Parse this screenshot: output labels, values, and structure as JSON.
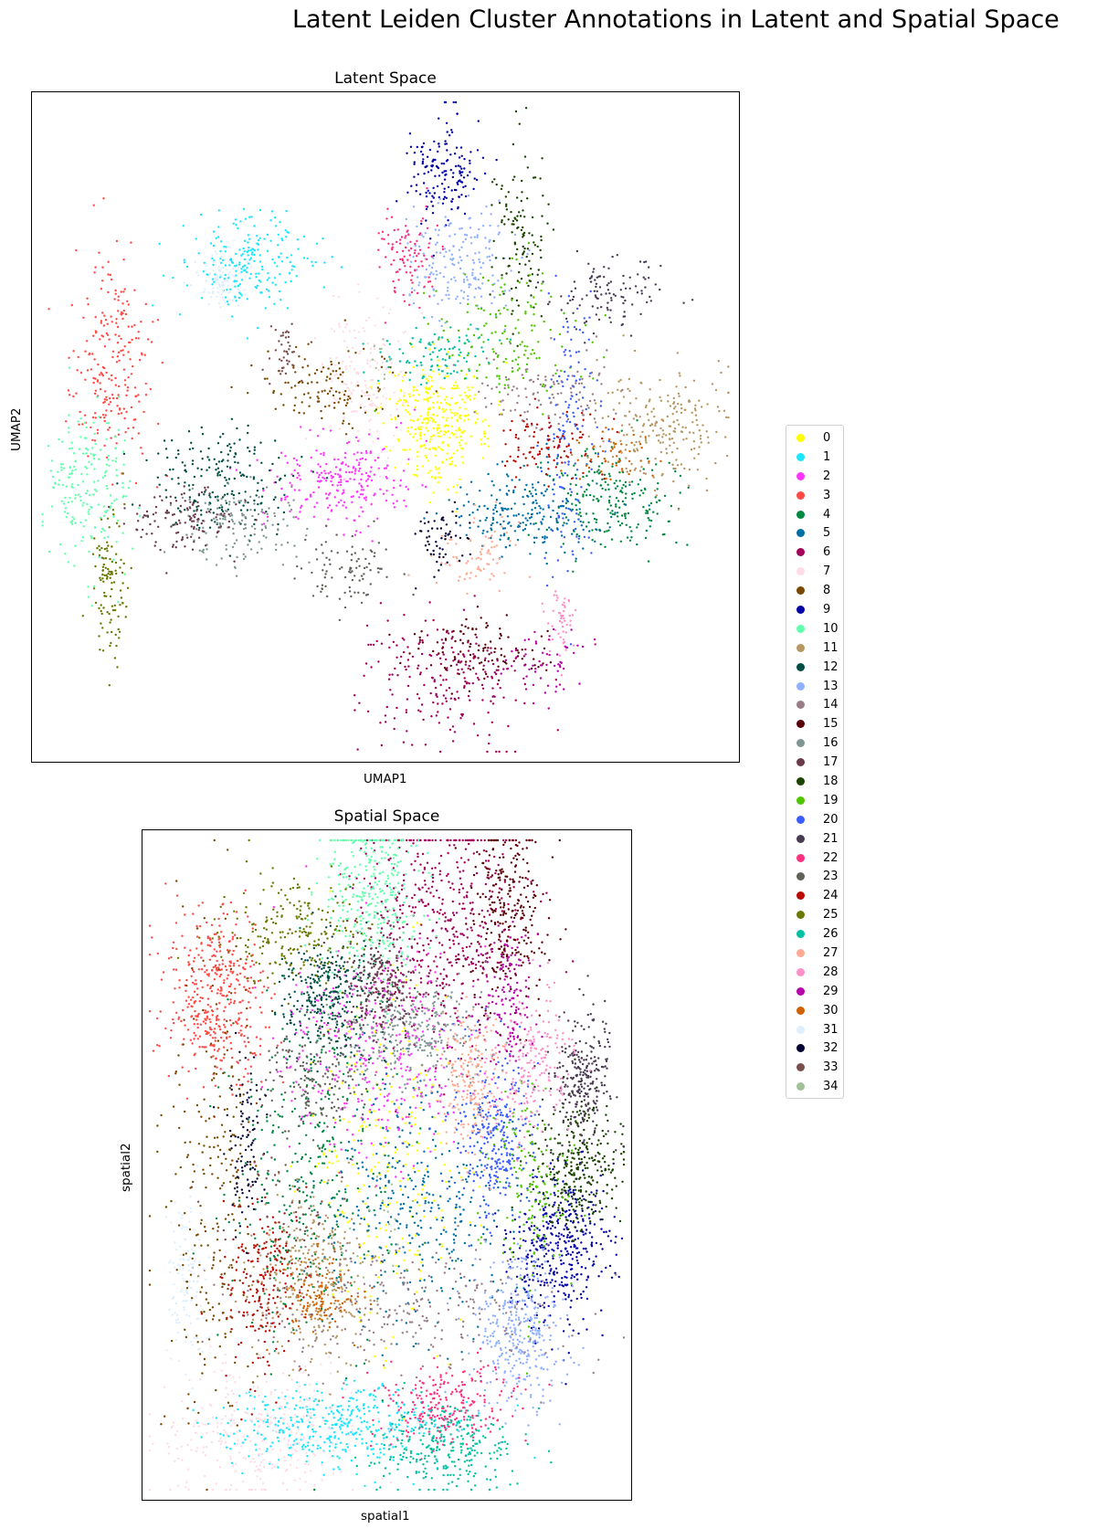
{
  "figure": {
    "title": "Latent Leiden Cluster Annotations in Latent and Spatial Space"
  },
  "chart_data": [
    {
      "type": "scatter",
      "title": "Latent Space",
      "xlabel": "UMAP1",
      "ylabel": "UMAP2",
      "grid": false,
      "xticks": [],
      "yticks": [],
      "legend_position": "right",
      "note_values": "x/y in normalized axis units (0-1); axes have no ticks",
      "clusters": [
        {
          "id": "0",
          "center": [
            0.57,
            0.49
          ],
          "spread": [
            0.035,
            0.045
          ],
          "n": 340
        },
        {
          "id": "1",
          "center": [
            0.31,
            0.25
          ],
          "spread": [
            0.045,
            0.04
          ],
          "n": 220
        },
        {
          "id": "2",
          "center": [
            0.44,
            0.58
          ],
          "spread": [
            0.05,
            0.035
          ],
          "n": 240
        },
        {
          "id": "3",
          "center": [
            0.11,
            0.41
          ],
          "spread": [
            0.03,
            0.09
          ],
          "n": 230
        },
        {
          "id": "4",
          "center": [
            0.82,
            0.61
          ],
          "spread": [
            0.05,
            0.04
          ],
          "n": 220
        },
        {
          "id": "5",
          "center": [
            0.7,
            0.63
          ],
          "spread": [
            0.05,
            0.03
          ],
          "n": 220
        },
        {
          "id": "6",
          "center": [
            0.58,
            0.88
          ],
          "spread": [
            0.06,
            0.05
          ],
          "n": 230
        },
        {
          "id": "7",
          "center": [
            0.47,
            0.42
          ],
          "spread": [
            0.03,
            0.06
          ],
          "n": 160
        },
        {
          "id": "8",
          "center": [
            0.41,
            0.44
          ],
          "spread": [
            0.05,
            0.03
          ],
          "n": 120
        },
        {
          "id": "9",
          "center": [
            0.58,
            0.12
          ],
          "spread": [
            0.025,
            0.04
          ],
          "n": 160
        },
        {
          "id": "10",
          "center": [
            0.08,
            0.59
          ],
          "spread": [
            0.03,
            0.06
          ],
          "n": 200
        },
        {
          "id": "11",
          "center": [
            0.89,
            0.5
          ],
          "spread": [
            0.05,
            0.04
          ],
          "n": 230
        },
        {
          "id": "12",
          "center": [
            0.27,
            0.58
          ],
          "spread": [
            0.05,
            0.04
          ],
          "n": 200
        },
        {
          "id": "13",
          "center": [
            0.61,
            0.25
          ],
          "spread": [
            0.04,
            0.04
          ],
          "n": 190
        },
        {
          "id": "14",
          "center": [
            0.72,
            0.45
          ],
          "spread": [
            0.05,
            0.03
          ],
          "n": 120
        },
        {
          "id": "15",
          "center": [
            0.64,
            0.83
          ],
          "spread": [
            0.05,
            0.025
          ],
          "n": 110
        },
        {
          "id": "16",
          "center": [
            0.29,
            0.65
          ],
          "spread": [
            0.04,
            0.03
          ],
          "n": 150
        },
        {
          "id": "17",
          "center": [
            0.21,
            0.64
          ],
          "spread": [
            0.04,
            0.025
          ],
          "n": 120
        },
        {
          "id": "18",
          "center": [
            0.69,
            0.21
          ],
          "spread": [
            0.02,
            0.06
          ],
          "n": 120
        },
        {
          "id": "19",
          "center": [
            0.68,
            0.36
          ],
          "spread": [
            0.06,
            0.05
          ],
          "n": 150
        },
        {
          "id": "20",
          "center": [
            0.76,
            0.5
          ],
          "spread": [
            0.02,
            0.1
          ],
          "n": 150
        },
        {
          "id": "21",
          "center": [
            0.81,
            0.3
          ],
          "spread": [
            0.04,
            0.025
          ],
          "n": 110
        },
        {
          "id": "22",
          "center": [
            0.53,
            0.24
          ],
          "spread": [
            0.02,
            0.04
          ],
          "n": 100
        },
        {
          "id": "23",
          "center": [
            0.45,
            0.71
          ],
          "spread": [
            0.035,
            0.03
          ],
          "n": 90
        },
        {
          "id": "24",
          "center": [
            0.73,
            0.53
          ],
          "spread": [
            0.035,
            0.025
          ],
          "n": 100
        },
        {
          "id": "25",
          "center": [
            0.11,
            0.74
          ],
          "spread": [
            0.012,
            0.06
          ],
          "n": 110
        },
        {
          "id": "26",
          "center": [
            0.57,
            0.39
          ],
          "spread": [
            0.04,
            0.02
          ],
          "n": 100
        },
        {
          "id": "27",
          "center": [
            0.63,
            0.69
          ],
          "spread": [
            0.03,
            0.03
          ],
          "n": 80
        },
        {
          "id": "28",
          "center": [
            0.75,
            0.79
          ],
          "spread": [
            0.01,
            0.03
          ],
          "n": 50
        },
        {
          "id": "29",
          "center": [
            0.73,
            0.85
          ],
          "spread": [
            0.03,
            0.03
          ],
          "n": 60
        },
        {
          "id": "30",
          "center": [
            0.82,
            0.55
          ],
          "spread": [
            0.025,
            0.02
          ],
          "n": 50
        },
        {
          "id": "31",
          "center": [
            0.27,
            0.28
          ],
          "spread": [
            0.02,
            0.02
          ],
          "n": 90
        },
        {
          "id": "32",
          "center": [
            0.58,
            0.67
          ],
          "spread": [
            0.02,
            0.03
          ],
          "n": 60
        },
        {
          "id": "33",
          "center": [
            0.36,
            0.38
          ],
          "spread": [
            0.01,
            0.025
          ],
          "n": 40
        },
        {
          "id": "34",
          "center": [
            0.5,
            0.4
          ],
          "spread": [
            0.02,
            0.02
          ],
          "n": 10
        }
      ]
    },
    {
      "type": "scatter",
      "title": "Spatial Space",
      "xlabel": "spatial1",
      "ylabel": "spatial2",
      "grid": false,
      "xticks": [],
      "yticks": [],
      "legend_position": "right",
      "note_values": "x/y in normalized axis units (0-1); axes have no ticks",
      "clusters": [
        {
          "id": "0",
          "center": [
            0.5,
            0.48
          ],
          "spread": [
            0.08,
            0.12
          ],
          "n": 260
        },
        {
          "id": "1",
          "center": [
            0.4,
            0.89
          ],
          "spread": [
            0.12,
            0.03
          ],
          "n": 420
        },
        {
          "id": "2",
          "center": [
            0.48,
            0.33
          ],
          "spread": [
            0.1,
            0.08
          ],
          "n": 380
        },
        {
          "id": "3",
          "center": [
            0.15,
            0.25
          ],
          "spread": [
            0.05,
            0.07
          ],
          "n": 420
        },
        {
          "id": "4",
          "center": [
            0.34,
            0.52
          ],
          "spread": [
            0.08,
            0.13
          ],
          "n": 360
        },
        {
          "id": "5",
          "center": [
            0.56,
            0.56
          ],
          "spread": [
            0.1,
            0.1
          ],
          "n": 360
        },
        {
          "id": "6",
          "center": [
            0.62,
            0.13
          ],
          "spread": [
            0.08,
            0.09
          ],
          "n": 480
        },
        {
          "id": "7",
          "center": [
            0.25,
            0.9
          ],
          "spread": [
            0.1,
            0.05
          ],
          "n": 300
        },
        {
          "id": "8",
          "center": [
            0.15,
            0.55
          ],
          "spread": [
            0.05,
            0.18
          ],
          "n": 260
        },
        {
          "id": "9",
          "center": [
            0.85,
            0.62
          ],
          "spread": [
            0.05,
            0.06
          ],
          "n": 420
        },
        {
          "id": "10",
          "center": [
            0.47,
            0.1
          ],
          "spread": [
            0.05,
            0.07
          ],
          "n": 340
        },
        {
          "id": "11",
          "center": [
            0.35,
            0.67
          ],
          "spread": [
            0.06,
            0.06
          ],
          "n": 300
        },
        {
          "id": "12",
          "center": [
            0.38,
            0.25
          ],
          "spread": [
            0.05,
            0.05
          ],
          "n": 320
        },
        {
          "id": "13",
          "center": [
            0.77,
            0.75
          ],
          "spread": [
            0.05,
            0.06
          ],
          "n": 340
        },
        {
          "id": "14",
          "center": [
            0.55,
            0.72
          ],
          "spread": [
            0.15,
            0.05
          ],
          "n": 280
        },
        {
          "id": "15",
          "center": [
            0.75,
            0.12
          ],
          "spread": [
            0.04,
            0.07
          ],
          "n": 280
        },
        {
          "id": "16",
          "center": [
            0.55,
            0.3
          ],
          "spread": [
            0.07,
            0.04
          ],
          "n": 300
        },
        {
          "id": "17",
          "center": [
            0.49,
            0.23
          ],
          "spread": [
            0.04,
            0.04
          ],
          "n": 240
        },
        {
          "id": "18",
          "center": [
            0.89,
            0.5
          ],
          "spread": [
            0.04,
            0.05
          ],
          "n": 300
        },
        {
          "id": "19",
          "center": [
            0.79,
            0.52
          ],
          "spread": [
            0.04,
            0.08
          ],
          "n": 160
        },
        {
          "id": "20",
          "center": [
            0.72,
            0.46
          ],
          "spread": [
            0.04,
            0.06
          ],
          "n": 300
        },
        {
          "id": "21",
          "center": [
            0.9,
            0.37
          ],
          "spread": [
            0.03,
            0.05
          ],
          "n": 260
        },
        {
          "id": "22",
          "center": [
            0.62,
            0.86
          ],
          "spread": [
            0.07,
            0.03
          ],
          "n": 240
        },
        {
          "id": "23",
          "center": [
            0.35,
            0.37
          ],
          "spread": [
            0.05,
            0.04
          ],
          "n": 160
        },
        {
          "id": "24",
          "center": [
            0.25,
            0.67
          ],
          "spread": [
            0.04,
            0.07
          ],
          "n": 200
        },
        {
          "id": "25",
          "center": [
            0.3,
            0.15
          ],
          "spread": [
            0.08,
            0.04
          ],
          "n": 220
        },
        {
          "id": "26",
          "center": [
            0.62,
            0.92
          ],
          "spread": [
            0.07,
            0.03
          ],
          "n": 280
        },
        {
          "id": "27",
          "center": [
            0.67,
            0.37
          ],
          "spread": [
            0.03,
            0.05
          ],
          "n": 200
        },
        {
          "id": "28",
          "center": [
            0.8,
            0.35
          ],
          "spread": [
            0.04,
            0.05
          ],
          "n": 200
        },
        {
          "id": "29",
          "center": [
            0.75,
            0.25
          ],
          "spread": [
            0.03,
            0.05
          ],
          "n": 140
        },
        {
          "id": "30",
          "center": [
            0.37,
            0.7
          ],
          "spread": [
            0.04,
            0.03
          ],
          "n": 120
        },
        {
          "id": "31",
          "center": [
            0.09,
            0.68
          ],
          "spread": [
            0.02,
            0.06
          ],
          "n": 120
        },
        {
          "id": "32",
          "center": [
            0.21,
            0.47
          ],
          "spread": [
            0.02,
            0.06
          ],
          "n": 100
        },
        {
          "id": "33",
          "center": [
            0.3,
            0.55
          ],
          "spread": [
            0.08,
            0.08
          ],
          "n": 60
        },
        {
          "id": "34",
          "center": [
            0.5,
            0.6
          ],
          "spread": [
            0.05,
            0.05
          ],
          "n": 20
        }
      ]
    }
  ],
  "legend": {
    "items": [
      {
        "label": "0",
        "color": "#ffff00"
      },
      {
        "label": "1",
        "color": "#1ce6ff"
      },
      {
        "label": "2",
        "color": "#ff34ff"
      },
      {
        "label": "3",
        "color": "#ff4a46"
      },
      {
        "label": "4",
        "color": "#008941"
      },
      {
        "label": "5",
        "color": "#006fa6"
      },
      {
        "label": "6",
        "color": "#a30059"
      },
      {
        "label": "7",
        "color": "#ffdbe5"
      },
      {
        "label": "8",
        "color": "#7a4900"
      },
      {
        "label": "9",
        "color": "#0000a6"
      },
      {
        "label": "10",
        "color": "#63ffac"
      },
      {
        "label": "11",
        "color": "#b79762"
      },
      {
        "label": "12",
        "color": "#004d43"
      },
      {
        "label": "13",
        "color": "#8fb0ff"
      },
      {
        "label": "14",
        "color": "#997d87"
      },
      {
        "label": "15",
        "color": "#5a0007"
      },
      {
        "label": "16",
        "color": "#809693"
      },
      {
        "label": "17",
        "color": "#6a3a4c"
      },
      {
        "label": "18",
        "color": "#1b4400"
      },
      {
        "label": "19",
        "color": "#4fc601"
      },
      {
        "label": "20",
        "color": "#3b5dff"
      },
      {
        "label": "21",
        "color": "#4a3b53"
      },
      {
        "label": "22",
        "color": "#ff2f80"
      },
      {
        "label": "23",
        "color": "#61615a"
      },
      {
        "label": "24",
        "color": "#ba0900"
      },
      {
        "label": "25",
        "color": "#6b7900"
      },
      {
        "label": "26",
        "color": "#00c2a0"
      },
      {
        "label": "27",
        "color": "#ffaa92"
      },
      {
        "label": "28",
        "color": "#ff90c9"
      },
      {
        "label": "29",
        "color": "#b903aa"
      },
      {
        "label": "30",
        "color": "#d16100"
      },
      {
        "label": "31",
        "color": "#ddefff"
      },
      {
        "label": "32",
        "color": "#000035"
      },
      {
        "label": "33",
        "color": "#7b4f4b"
      },
      {
        "label": "34",
        "color": "#a1c299"
      }
    ]
  }
}
